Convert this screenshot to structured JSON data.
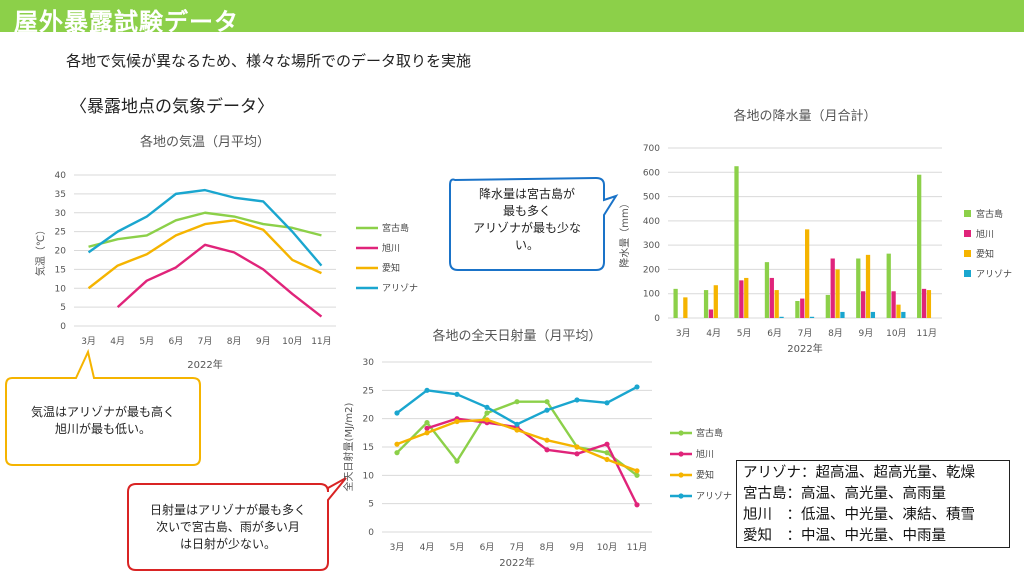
{
  "page": {
    "title": "屋外暴露試験データ",
    "subtitle": "各地で気候が異なるため、様々な場所でのデータ取りを実施",
    "section_title": "〈暴露地点の気象データ〉"
  },
  "colors": {
    "header": "#8cd049",
    "miyako": "#8cd049",
    "asahikawa": "#e0247a",
    "aichi": "#f5b400",
    "arizona": "#1aa6cf"
  },
  "callouts": {
    "rain": [
      "降水量は宮古島が",
      "最も多く",
      "アリゾナが最も少な",
      "い。"
    ],
    "temp": [
      "気温はアリゾナが最も高く",
      "旭川が最も低い。"
    ],
    "sun": [
      "日射量はアリゾナが最も多く",
      "次いで宮古島、雨が多い月",
      "は日射が少ない。"
    ]
  },
  "summary": [
    "アリゾナ：超高温、超高光量、乾燥",
    "宮古島：高温、高光量、高雨量",
    "旭川　：低温、中光量、凍結、積雪",
    "愛知　：中温、中光量、中雨量"
  ],
  "chart_data": [
    {
      "id": "temp",
      "type": "line",
      "title": "各地の気温（月平均）",
      "xlabel": "2022年",
      "ylabel": "気温（℃）",
      "categories": [
        "3月",
        "4月",
        "5月",
        "6月",
        "7月",
        "8月",
        "9月",
        "10月",
        "11月"
      ],
      "ylim": [
        0,
        40
      ],
      "yticks": [
        0,
        5,
        10,
        15,
        20,
        25,
        30,
        35,
        40
      ],
      "grid": true,
      "legend": "right",
      "series": [
        {
          "name": "宮古島",
          "color": "#8cd049",
          "values": [
            21,
            23,
            24,
            28,
            30,
            29,
            27,
            26,
            24
          ]
        },
        {
          "name": "旭川",
          "color": "#e0247a",
          "values": [
            null,
            5,
            12,
            15.5,
            21.5,
            19.5,
            15,
            8.5,
            2.5
          ]
        },
        {
          "name": "愛知",
          "color": "#f5b400",
          "values": [
            10,
            16,
            19,
            24,
            27,
            28,
            25.5,
            17.5,
            14
          ]
        },
        {
          "name": "アリゾナ",
          "color": "#1aa6cf",
          "values": [
            19.5,
            25,
            29,
            35,
            36,
            34,
            33,
            25,
            16
          ]
        }
      ]
    },
    {
      "id": "rain",
      "type": "bar",
      "title": "各地の降水量（月合計）",
      "xlabel": "2022年",
      "ylabel": "降水量（mm）",
      "categories": [
        "3月",
        "4月",
        "5月",
        "6月",
        "7月",
        "8月",
        "9月",
        "10月",
        "11月"
      ],
      "ylim": [
        0,
        700
      ],
      "yticks": [
        0,
        100,
        200,
        300,
        400,
        500,
        600,
        700
      ],
      "grid": true,
      "legend": "right",
      "series": [
        {
          "name": "宮古島",
          "color": "#8cd049",
          "values": [
            120,
            115,
            625,
            230,
            70,
            95,
            245,
            265,
            590
          ]
        },
        {
          "name": "旭川",
          "color": "#e0247a",
          "values": [
            0,
            35,
            155,
            165,
            80,
            245,
            110,
            110,
            120
          ]
        },
        {
          "name": "愛知",
          "color": "#f5b400",
          "values": [
            85,
            135,
            165,
            115,
            365,
            200,
            260,
            55,
            115
          ]
        },
        {
          "name": "アリゾナ",
          "color": "#1aa6cf",
          "values": [
            0,
            0,
            0,
            5,
            5,
            25,
            25,
            25,
            0
          ]
        }
      ]
    },
    {
      "id": "sun",
      "type": "line",
      "title": "各地の全天日射量（月平均）",
      "xlabel": "2022年",
      "ylabel": "全天日射量(MJ/m2)",
      "categories": [
        "3月",
        "4月",
        "5月",
        "6月",
        "7月",
        "8月",
        "9月",
        "10月",
        "11月"
      ],
      "ylim": [
        0,
        30
      ],
      "yticks": [
        0,
        5,
        10,
        15,
        20,
        25,
        30
      ],
      "grid": true,
      "legend": "right",
      "series": [
        {
          "name": "宮古島",
          "color": "#8cd049",
          "values": [
            14,
            19.3,
            12.5,
            21,
            23,
            23,
            15,
            14,
            10
          ]
        },
        {
          "name": "旭川",
          "color": "#e0247a",
          "values": [
            null,
            18.3,
            20,
            19.3,
            18.5,
            14.5,
            13.8,
            15.5,
            4.8
          ]
        },
        {
          "name": "愛知",
          "color": "#f5b400",
          "values": [
            15.5,
            17.5,
            19.5,
            19.8,
            18,
            16.2,
            15,
            12.8,
            10.8
          ]
        },
        {
          "name": "アリゾナ",
          "color": "#1aa6cf",
          "values": [
            21,
            25,
            24.3,
            22,
            19,
            21.5,
            23.3,
            22.8,
            25.6
          ]
        }
      ]
    }
  ]
}
